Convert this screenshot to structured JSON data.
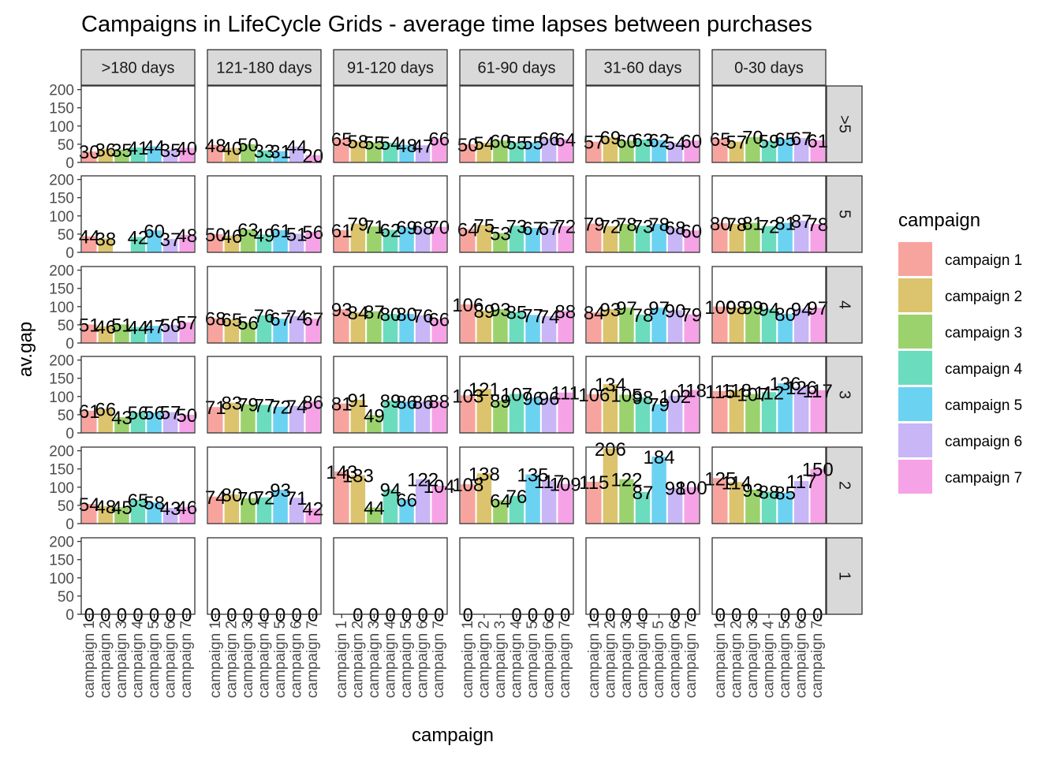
{
  "chart_data": {
    "type": "bar",
    "title": "Campaigns in LifeCycle Grids - average time lapses between purchases",
    "xlabel": "campaign",
    "ylabel": "av.gap",
    "ylim": [
      0,
      210
    ],
    "yticks": [
      "0",
      "50",
      "100",
      "150",
      "200"
    ],
    "grid": false,
    "legend_position": "right",
    "legend_title": "campaign",
    "categories": [
      "campaign 1",
      "campaign 2",
      "campaign 3",
      "campaign 4",
      "campaign 5",
      "campaign 6",
      "campaign 7"
    ],
    "colors": [
      "#F8A49E",
      "#DCC46E",
      "#9BD26E",
      "#6CDCBE",
      "#6CD2F2",
      "#C8B6F6",
      "#F6A2E6"
    ],
    "columns": [
      ">180 days",
      "121-180 days",
      "91-120 days",
      "61-90 days",
      "31-60 days",
      "0-30 days"
    ],
    "rows": [
      ">5",
      "5",
      "4",
      "3",
      "2",
      "1"
    ],
    "panels": [
      [
        [
          30,
          36,
          35,
          41,
          44,
          35,
          40
        ],
        [
          48,
          40,
          50,
          33,
          31,
          44,
          20
        ],
        [
          65,
          58,
          55,
          54,
          48,
          47,
          66
        ],
        [
          50,
          54,
          60,
          55,
          55,
          66,
          64
        ],
        [
          57,
          69,
          60,
          63,
          62,
          54,
          60
        ],
        [
          65,
          57,
          70,
          59,
          65,
          67,
          61
        ]
      ],
      [
        [
          44,
          38,
          null,
          42,
          60,
          37,
          48
        ],
        [
          50,
          46,
          63,
          49,
          61,
          51,
          56
        ],
        [
          61,
          79,
          71,
          62,
          69,
          68,
          70
        ],
        [
          64,
          75,
          53,
          73,
          67,
          67,
          72
        ],
        [
          79,
          72,
          78,
          73,
          78,
          68,
          60
        ],
        [
          80,
          78,
          81,
          72,
          81,
          87,
          78
        ]
      ],
      [
        [
          51,
          46,
          51,
          44,
          47,
          50,
          57
        ],
        [
          68,
          65,
          56,
          76,
          67,
          74,
          67
        ],
        [
          93,
          84,
          87,
          80,
          80,
          76,
          66
        ],
        [
          106,
          89,
          93,
          85,
          77,
          74,
          88
        ],
        [
          84,
          93,
          97,
          78,
          97,
          90,
          79
        ],
        [
          100,
          98,
          99,
          94,
          80,
          94,
          97
        ]
      ],
      [
        [
          61,
          66,
          43,
          56,
          56,
          57,
          50
        ],
        [
          71,
          83,
          79,
          77,
          72,
          74,
          86
        ],
        [
          81,
          91,
          49,
          89,
          86,
          86,
          88
        ],
        [
          103,
          121,
          89,
          107,
          96,
          96,
          111
        ],
        [
          106,
          134,
          105,
          98,
          79,
          102,
          118
        ],
        [
          115,
          118,
          107,
          112,
          136,
          126,
          117
        ]
      ],
      [
        [
          54,
          48,
          45,
          65,
          58,
          43,
          46
        ],
        [
          74,
          80,
          70,
          72,
          93,
          71,
          42
        ],
        [
          143,
          133,
          44,
          94,
          66,
          122,
          104
        ],
        [
          108,
          138,
          64,
          76,
          135,
          117,
          109
        ],
        [
          115,
          206,
          122,
          87,
          184,
          98,
          100
        ],
        [
          125,
          114,
          93,
          88,
          85,
          117,
          150
        ]
      ],
      [
        [
          0,
          0,
          0,
          0,
          0,
          0,
          0
        ],
        [
          0,
          0,
          0,
          0,
          0,
          0,
          0
        ],
        [
          null,
          0,
          0,
          0,
          0,
          0,
          0
        ],
        [
          0,
          null,
          null,
          0,
          0,
          0,
          0
        ],
        [
          0,
          0,
          0,
          0,
          null,
          0,
          0
        ],
        [
          0,
          0,
          0,
          null,
          0,
          0,
          0
        ]
      ]
    ]
  }
}
